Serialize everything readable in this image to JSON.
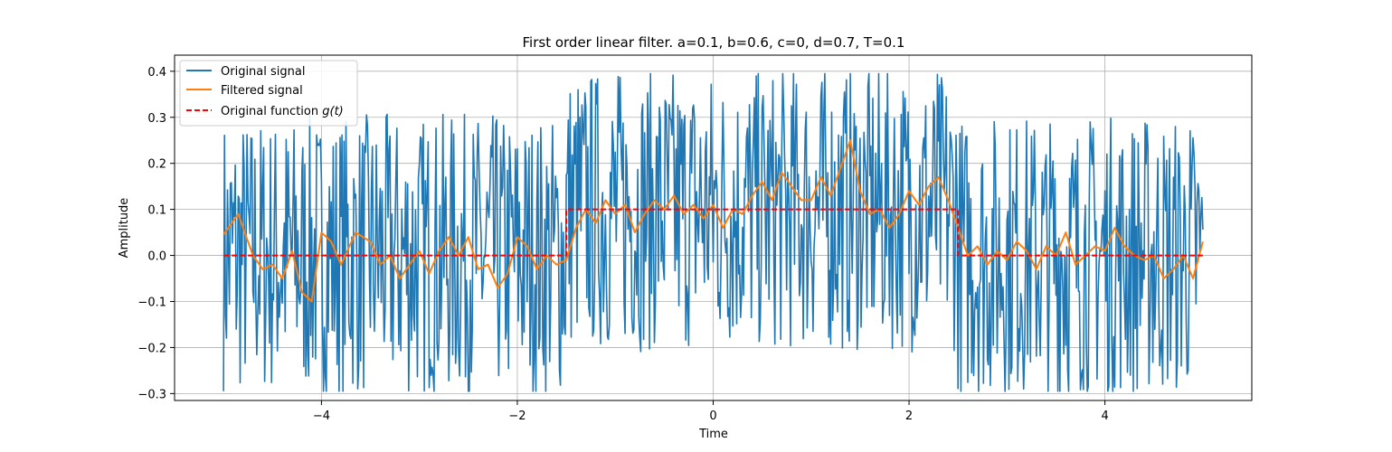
{
  "chart_data": {
    "type": "line",
    "title": "First order linear filter. a=0.1, b=0.6, c=0, d=0.7, T=0.1",
    "xlabel": "Time",
    "ylabel": "Amplitude",
    "xlim": [
      -5.5,
      5.5
    ],
    "ylim": [
      -0.315,
      0.435
    ],
    "grid": true,
    "legend_position": "upper-left",
    "xticks": [
      -4,
      -2,
      0,
      2,
      4
    ],
    "xtick_labels": [
      "−4",
      "−2",
      "0",
      "2",
      "4"
    ],
    "yticks": [
      -0.3,
      -0.2,
      -0.1,
      0.0,
      0.1,
      0.2,
      0.3,
      0.4
    ],
    "ytick_labels": [
      "−0.3",
      "−0.2",
      "−0.1",
      "0.0",
      "0.1",
      "0.2",
      "0.3",
      "0.4"
    ],
    "noise_seed": 7,
    "series": [
      {
        "name": "Original signal",
        "color": "#1f77b4",
        "style": "solid",
        "description": "dense noisy signal, ~1000 samples from t=-5 to t=5, values approximately in [-0.3, 0.4] around the step function"
      },
      {
        "name": "Filtered signal",
        "color": "#ff7f0e",
        "style": "solid",
        "description": "smoothed version of the original signal",
        "points": [
          [
            -5.0,
            0.045
          ],
          [
            -4.85,
            0.09
          ],
          [
            -4.7,
            0.0
          ],
          [
            -4.6,
            -0.03
          ],
          [
            -4.5,
            -0.02
          ],
          [
            -4.4,
            -0.05
          ],
          [
            -4.3,
            0.01
          ],
          [
            -4.2,
            -0.08
          ],
          [
            -4.1,
            -0.1
          ],
          [
            -4.0,
            0.05
          ],
          [
            -3.9,
            0.03
          ],
          [
            -3.8,
            -0.02
          ],
          [
            -3.65,
            0.05
          ],
          [
            -3.5,
            0.03
          ],
          [
            -3.4,
            -0.02
          ],
          [
            -3.3,
            0.0
          ],
          [
            -3.2,
            -0.05
          ],
          [
            -3.1,
            -0.02
          ],
          [
            -3.0,
            0.01
          ],
          [
            -2.9,
            -0.04
          ],
          [
            -2.8,
            0.01
          ],
          [
            -2.7,
            0.04
          ],
          [
            -2.6,
            0.0
          ],
          [
            -2.5,
            0.04
          ],
          [
            -2.4,
            -0.03
          ],
          [
            -2.3,
            -0.02
          ],
          [
            -2.2,
            -0.07
          ],
          [
            -2.1,
            -0.04
          ],
          [
            -2.0,
            0.04
          ],
          [
            -1.9,
            0.02
          ],
          [
            -1.8,
            -0.03
          ],
          [
            -1.7,
            0.0
          ],
          [
            -1.6,
            -0.02
          ],
          [
            -1.5,
            -0.01
          ],
          [
            -1.4,
            0.06
          ],
          [
            -1.3,
            0.1
          ],
          [
            -1.2,
            0.07
          ],
          [
            -1.1,
            0.12
          ],
          [
            -1.0,
            0.09
          ],
          [
            -0.9,
            0.11
          ],
          [
            -0.8,
            0.05
          ],
          [
            -0.7,
            0.09
          ],
          [
            -0.6,
            0.12
          ],
          [
            -0.5,
            0.1
          ],
          [
            -0.4,
            0.13
          ],
          [
            -0.3,
            0.09
          ],
          [
            -0.2,
            0.11
          ],
          [
            -0.1,
            0.08
          ],
          [
            0.0,
            0.11
          ],
          [
            0.1,
            0.06
          ],
          [
            0.2,
            0.1
          ],
          [
            0.3,
            0.09
          ],
          [
            0.4,
            0.13
          ],
          [
            0.5,
            0.16
          ],
          [
            0.6,
            0.12
          ],
          [
            0.7,
            0.18
          ],
          [
            0.8,
            0.15
          ],
          [
            0.9,
            0.12
          ],
          [
            1.0,
            0.12
          ],
          [
            1.1,
            0.17
          ],
          [
            1.2,
            0.13
          ],
          [
            1.3,
            0.19
          ],
          [
            1.4,
            0.25
          ],
          [
            1.5,
            0.14
          ],
          [
            1.6,
            0.09
          ],
          [
            1.7,
            0.1
          ],
          [
            1.8,
            0.06
          ],
          [
            1.9,
            0.09
          ],
          [
            2.0,
            0.14
          ],
          [
            2.1,
            0.11
          ],
          [
            2.2,
            0.15
          ],
          [
            2.3,
            0.17
          ],
          [
            2.4,
            0.12
          ],
          [
            2.5,
            0.06
          ],
          [
            2.6,
            0.0
          ],
          [
            2.7,
            0.02
          ],
          [
            2.8,
            -0.02
          ],
          [
            2.9,
            0.01
          ],
          [
            3.0,
            -0.01
          ],
          [
            3.1,
            0.03
          ],
          [
            3.2,
            0.01
          ],
          [
            3.3,
            -0.03
          ],
          [
            3.4,
            0.02
          ],
          [
            3.5,
            0.0
          ],
          [
            3.6,
            0.05
          ],
          [
            3.7,
            -0.02
          ],
          [
            3.8,
            0.0
          ],
          [
            3.9,
            0.02
          ],
          [
            4.0,
            0.01
          ],
          [
            4.1,
            0.06
          ],
          [
            4.2,
            0.02
          ],
          [
            4.3,
            0.0
          ],
          [
            4.4,
            -0.01
          ],
          [
            4.5,
            0.0
          ],
          [
            4.6,
            -0.05
          ],
          [
            4.7,
            -0.03
          ],
          [
            4.8,
            0.0
          ],
          [
            4.9,
            -0.05
          ],
          [
            5.0,
            0.03
          ]
        ]
      },
      {
        "name": "Original function g(t)",
        "color": "#ff0000",
        "style": "dashed",
        "points": [
          [
            -5.0,
            0.0
          ],
          [
            -1.5,
            0.0
          ],
          [
            -1.5,
            0.1
          ],
          [
            2.5,
            0.1
          ],
          [
            2.5,
            0.0
          ],
          [
            5.0,
            0.0
          ]
        ]
      }
    ],
    "legend": {
      "entries": [
        "Original signal",
        "Filtered signal",
        "Original function "
      ],
      "math_suffix": "g(t)"
    }
  }
}
